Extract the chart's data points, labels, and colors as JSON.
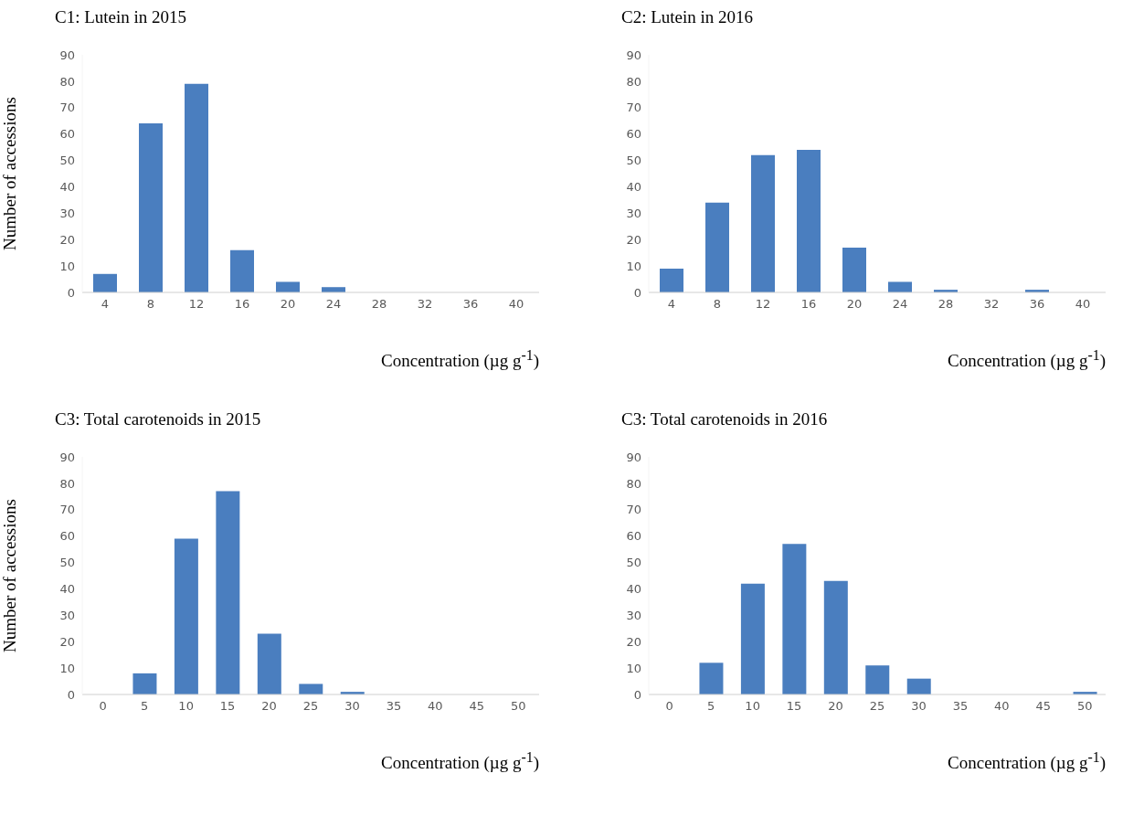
{
  "chart_data": [
    {
      "type": "bar",
      "title": "C1: Lutein in 2015",
      "xlabel": "Concentration (µg g$^{-1}$)",
      "ylabel": "Number of accessions",
      "categories": [
        "4",
        "8",
        "12",
        "16",
        "20",
        "24",
        "28",
        "32",
        "36",
        "40"
      ],
      "values": [
        7,
        64,
        79,
        16,
        4,
        2,
        0,
        0,
        0,
        0
      ],
      "color": "#4a7ebf",
      "ylim": [
        0,
        90
      ],
      "yticks": [
        0,
        10,
        20,
        30,
        40,
        50,
        60,
        70,
        80,
        90
      ]
    },
    {
      "type": "bar",
      "title": "C2: Lutein in 2016",
      "xlabel": "Concentration (µg g$^{-1}$)",
      "categories": [
        "4",
        "8",
        "12",
        "16",
        "20",
        "24",
        "28",
        "32",
        "36",
        "40"
      ],
      "values": [
        9,
        34,
        52,
        54,
        17,
        4,
        1,
        0,
        1,
        0
      ],
      "color": "#4a7ebf",
      "ylim": [
        0,
        90
      ],
      "yticks": [
        0,
        10,
        20,
        30,
        40,
        50,
        60,
        70,
        80,
        90
      ]
    },
    {
      "type": "bar",
      "title": "C3: Total carotenoids in 2015",
      "xlabel": "Concentration (µg g$^{-1}$)",
      "ylabel": "Number of accessions",
      "categories": [
        "0",
        "5",
        "10",
        "15",
        "20",
        "25",
        "30",
        "35",
        "40",
        "45",
        "50"
      ],
      "values": [
        0,
        8,
        59,
        77,
        23,
        4,
        1,
        0,
        0,
        0,
        0
      ],
      "color": "#4a7ebf",
      "ylim": [
        0,
        90
      ],
      "yticks": [
        0,
        10,
        20,
        30,
        40,
        50,
        60,
        70,
        80,
        90
      ]
    },
    {
      "type": "bar",
      "title": "C3: Total carotenoids in 2016",
      "xlabel": "Concentration (µg g$^{-1}$)",
      "categories": [
        "0",
        "5",
        "10",
        "15",
        "20",
        "25",
        "30",
        "35",
        "40",
        "45",
        "50"
      ],
      "values": [
        0,
        12,
        42,
        57,
        43,
        11,
        6,
        0,
        0,
        0,
        1
      ],
      "color": "#4a7ebf",
      "ylim": [
        0,
        90
      ],
      "yticks": [
        0,
        10,
        20,
        30,
        40,
        50,
        60,
        70,
        80,
        90
      ]
    }
  ]
}
